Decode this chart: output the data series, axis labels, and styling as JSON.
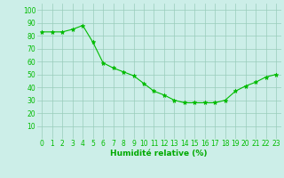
{
  "x": [
    0,
    1,
    2,
    3,
    4,
    5,
    6,
    7,
    8,
    9,
    10,
    11,
    12,
    13,
    14,
    15,
    16,
    17,
    18,
    19,
    20,
    21,
    22,
    23
  ],
  "y": [
    83,
    83,
    83,
    85,
    88,
    75,
    59,
    55,
    52,
    49,
    43,
    37,
    34,
    30,
    28,
    28,
    28,
    28,
    30,
    37,
    41,
    44,
    48,
    50
  ],
  "line_color": "#00bb00",
  "marker": "*",
  "marker_color": "#00bb00",
  "marker_size": 3.5,
  "line_width": 0.8,
  "background_color": "#cceee8",
  "grid_color": "#99ccbb",
  "xlabel": "Humidité relative (%)",
  "xlabel_color": "#00aa00",
  "xlabel_fontsize": 6.5,
  "tick_color": "#00bb00",
  "tick_fontsize": 5.5,
  "ylim": [
    0,
    105
  ],
  "yticks": [
    10,
    20,
    30,
    40,
    50,
    60,
    70,
    80,
    90,
    100
  ],
  "xlim": [
    -0.5,
    23.5
  ],
  "xticks": [
    0,
    1,
    2,
    3,
    4,
    5,
    6,
    7,
    8,
    9,
    10,
    11,
    12,
    13,
    14,
    15,
    16,
    17,
    18,
    19,
    20,
    21,
    22,
    23
  ]
}
